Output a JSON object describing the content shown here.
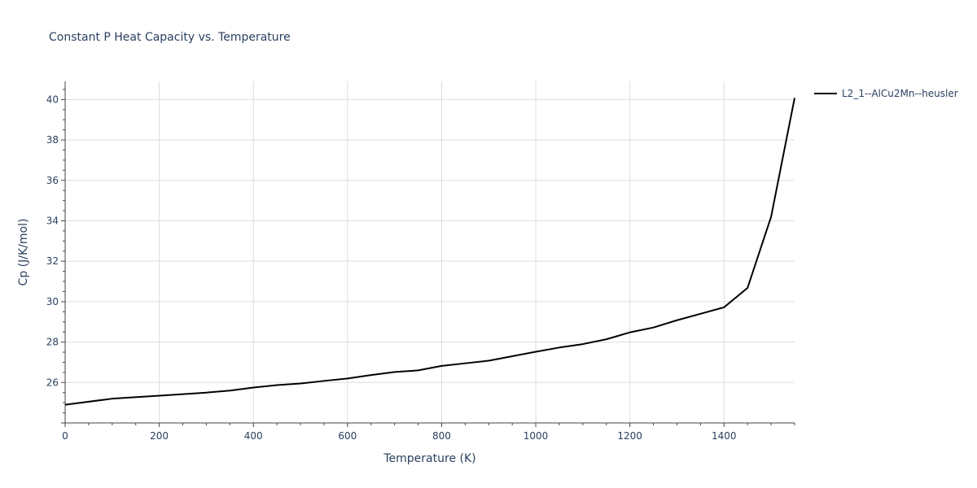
{
  "chart_data": {
    "type": "line",
    "title": "Constant P Heat Capacity vs. Temperature",
    "xlabel": "Temperature (K)",
    "ylabel": "Cp (J/K/mol)",
    "xlim": [
      0,
      1550
    ],
    "ylim": [
      24.0,
      40.9
    ],
    "xticks": [
      0,
      200,
      400,
      600,
      800,
      1000,
      1200,
      1400
    ],
    "yticks": [
      26,
      28,
      30,
      32,
      34,
      36,
      38,
      40
    ],
    "grid": true,
    "legend_position": "top-right",
    "series": [
      {
        "name": "L2_1--AlCu2Mn--heusler",
        "color": "#000000",
        "x": [
          0,
          100,
          200,
          300,
          350,
          400,
          450,
          500,
          550,
          600,
          650,
          700,
          750,
          800,
          850,
          900,
          950,
          1000,
          1050,
          1100,
          1150,
          1200,
          1250,
          1300,
          1350,
          1400,
          1450,
          1500,
          1550
        ],
        "y": [
          24.9,
          25.2,
          25.35,
          25.5,
          25.6,
          25.75,
          25.87,
          25.95,
          26.08,
          26.2,
          26.37,
          26.52,
          26.6,
          26.82,
          26.95,
          27.08,
          27.3,
          27.52,
          27.73,
          27.9,
          28.14,
          28.48,
          28.72,
          29.08,
          29.4,
          29.72,
          30.68,
          34.2,
          40.08
        ]
      }
    ]
  }
}
